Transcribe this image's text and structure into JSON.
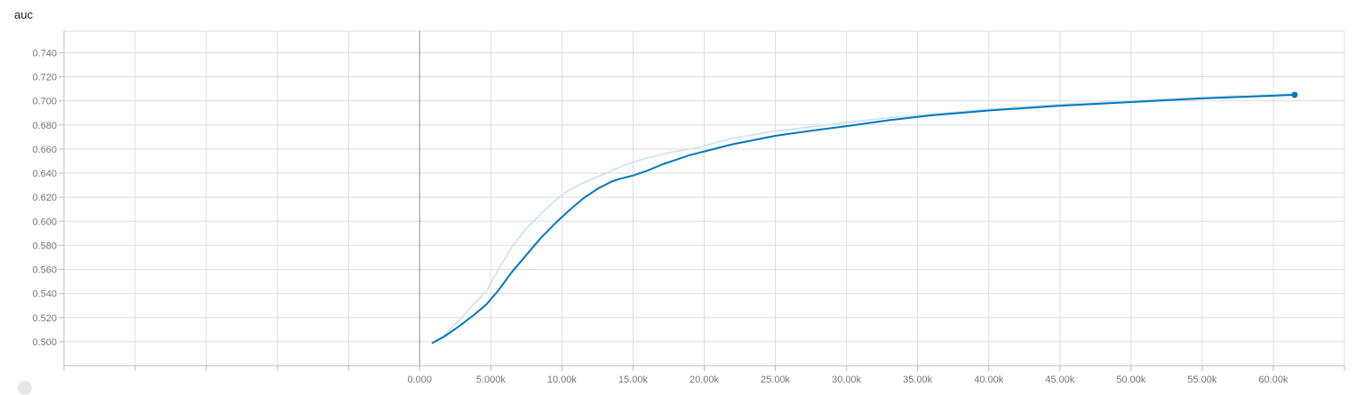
{
  "chart_data": {
    "type": "line",
    "title": "auc",
    "xlabel": "",
    "ylabel": "",
    "xlim": [
      -25000,
      65000
    ],
    "ylim": [
      0.48,
      0.758
    ],
    "grid": true,
    "x_ticks": [
      0,
      5000,
      10000,
      15000,
      20000,
      25000,
      30000,
      35000,
      40000,
      45000,
      50000,
      55000,
      60000
    ],
    "x_tick_labels": [
      "0.000",
      "5.000k",
      "10.00k",
      "15.00k",
      "20.00k",
      "25.00k",
      "30.00k",
      "35.00k",
      "40.00k",
      "45.00k",
      "50.00k",
      "55.00k",
      "60.00k"
    ],
    "y_ticks": [
      0.5,
      0.52,
      0.54,
      0.56,
      0.58,
      0.6,
      0.62,
      0.64,
      0.66,
      0.68,
      0.7,
      0.72,
      0.74
    ],
    "y_tick_labels": [
      "0.500",
      "0.520",
      "0.540",
      "0.560",
      "0.580",
      "0.600",
      "0.620",
      "0.640",
      "0.660",
      "0.680",
      "0.700",
      "0.720",
      "0.740"
    ],
    "series": [
      {
        "role": "raw",
        "color": "#c9e2f1",
        "x": [
          900,
          1700,
          2800,
          3800,
          4700,
          5500,
          6500,
          7500,
          8500,
          9500,
          10500,
          11500,
          12500,
          13500,
          14500,
          15500,
          16500,
          17500,
          18500,
          19500,
          22000,
          25000,
          28000,
          30000,
          33000,
          36000,
          40000,
          45000,
          50000,
          55000,
          61500
        ],
        "y": [
          0.499,
          0.505,
          0.518,
          0.531,
          0.542,
          0.559,
          0.579,
          0.594,
          0.606,
          0.617,
          0.626,
          0.632,
          0.637,
          0.642,
          0.647,
          0.651,
          0.654,
          0.657,
          0.659,
          0.661,
          0.669,
          0.675,
          0.679,
          0.682,
          0.686,
          0.689,
          0.693,
          0.697,
          0.7,
          0.703,
          0.706
        ]
      },
      {
        "role": "smoothed",
        "color": "#0277bd",
        "x": [
          900,
          1700,
          2800,
          3800,
          4700,
          5500,
          6500,
          7500,
          8500,
          9500,
          10500,
          11500,
          12500,
          13500,
          14000,
          15000,
          16000,
          17000,
          18000,
          19000,
          20000,
          22000,
          25000,
          28000,
          30000,
          33000,
          36000,
          40000,
          45000,
          50000,
          55000,
          61500
        ],
        "y": [
          0.499,
          0.504,
          0.513,
          0.522,
          0.531,
          0.542,
          0.558,
          0.572,
          0.586,
          0.598,
          0.609,
          0.619,
          0.627,
          0.633,
          0.635,
          0.638,
          0.642,
          0.647,
          0.651,
          0.655,
          0.658,
          0.664,
          0.671,
          0.676,
          0.679,
          0.684,
          0.688,
          0.692,
          0.696,
          0.699,
          0.702,
          0.705
        ]
      }
    ]
  },
  "colors": {
    "grid": "#dddddd",
    "axis": "#bdbdbd",
    "zero_line": "#9e9e9e",
    "tick_text": "#757575"
  }
}
